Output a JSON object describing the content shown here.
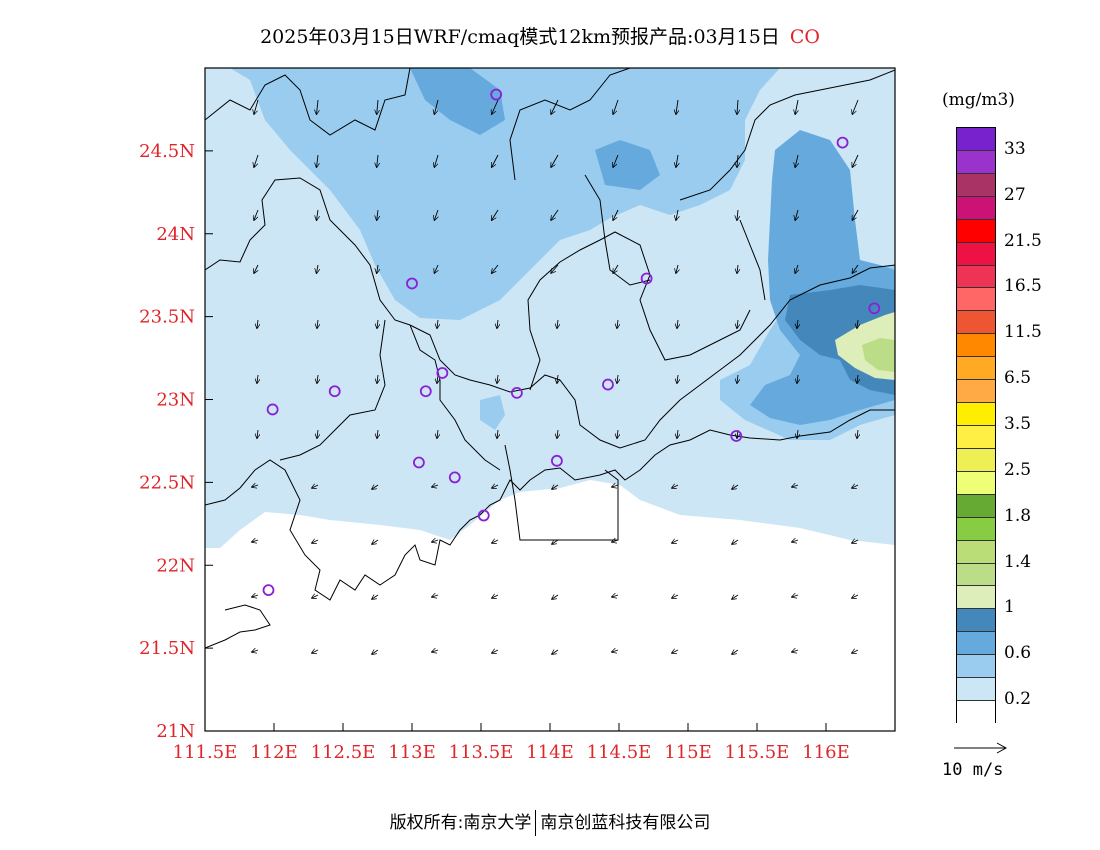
{
  "title": {
    "text": "2025年03月15日WRF/cmaq模式12km预报产品:03月15日",
    "pollutant": "CO"
  },
  "map": {
    "lon_range": [
      111.5,
      116.5
    ],
    "lat_range": [
      21,
      25
    ],
    "x_ticks": [
      "111.5E",
      "112E",
      "112.5E",
      "113E",
      "113.5E",
      "114E",
      "114.5E",
      "115E",
      "115.5E",
      "116E"
    ],
    "x_tick_values": [
      111.5,
      112,
      112.5,
      113,
      113.5,
      114,
      114.5,
      115,
      115.5,
      116
    ],
    "y_ticks": [
      "21N",
      "21.5N",
      "22N",
      "22.5N",
      "23N",
      "23.5N",
      "24N",
      "24.5N"
    ],
    "y_tick_values": [
      21,
      21.5,
      22,
      22.5,
      23,
      23.5,
      24,
      24.5
    ],
    "stations": [
      [
        111.99,
        22.94
      ],
      [
        112.44,
        23.05
      ],
      [
        113.0,
        23.7
      ],
      [
        113.1,
        23.05
      ],
      [
        113.22,
        23.16
      ],
      [
        113.05,
        22.62
      ],
      [
        113.31,
        22.53
      ],
      [
        113.52,
        22.3
      ],
      [
        113.76,
        23.04
      ],
      [
        114.42,
        23.09
      ],
      [
        114.05,
        22.63
      ],
      [
        114.7,
        23.73
      ],
      [
        115.35,
        22.78
      ],
      [
        113.61,
        24.84
      ],
      [
        116.12,
        24.55
      ],
      [
        116.35,
        23.55
      ],
      [
        111.96,
        21.85
      ]
    ]
  },
  "legend": {
    "unit": "(mg/m3)",
    "colors": [
      "#7722cc",
      "#9933cc",
      "#aa3366",
      "#cc1177",
      "#ff0000",
      "#ee1144",
      "#ee3355",
      "#ff6666",
      "#ee5533",
      "#ff8800",
      "#ffaa22",
      "#ffaa44",
      "#ffee00",
      "#ffee44",
      "#eeee55",
      "#eeff77",
      "#66aa33",
      "#88cc44",
      "#bbdd77",
      "#bbdd88",
      "#ddeebb",
      "#4488bb",
      "#66aadd",
      "#99ccee",
      "#cce6f6",
      "#ffffff"
    ],
    "labels": [
      "33",
      "27",
      "21.5",
      "16.5",
      "11.5",
      "6.5",
      "3.5",
      "2.5",
      "1.8",
      "1.4",
      "1",
      "0.6",
      "0.2"
    ]
  },
  "wind_reference": {
    "label": "10  m/s"
  },
  "footer": {
    "left": "版权所有:南京大学",
    "right": "南京创蓝科技有限公司"
  }
}
